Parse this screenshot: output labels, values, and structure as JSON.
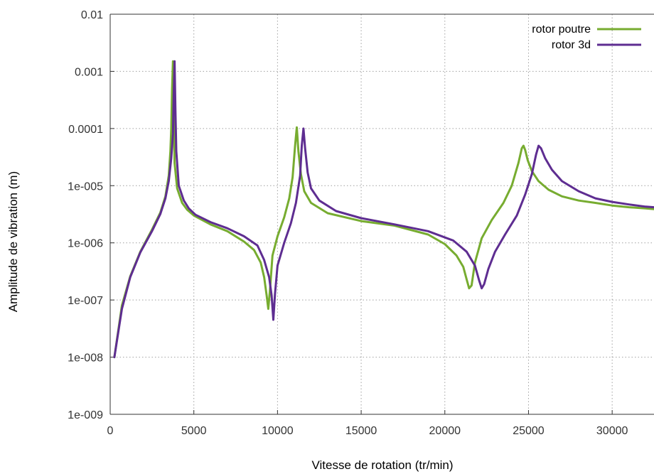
{
  "chart_data": {
    "type": "line",
    "title": "",
    "xlabel": "Vitesse de rotation (tr/min)",
    "ylabel": "Amplitude de vibration (m)",
    "xlim": [
      0,
      32500
    ],
    "ylim": [
      1e-09,
      0.01
    ],
    "yscale": "log",
    "grid": true,
    "legend_position": "top-right",
    "x_ticks": [
      0,
      5000,
      10000,
      15000,
      20000,
      25000,
      30000
    ],
    "x_tick_labels": [
      "0",
      "5000",
      "10000",
      "15000",
      "20000",
      "25000",
      "30000"
    ],
    "y_ticks": [
      1e-09,
      1e-08,
      1e-07,
      1e-06,
      1e-05,
      0.0001,
      0.001,
      0.01
    ],
    "y_tick_labels": [
      "1e-009",
      "1e-008",
      "1e-007",
      "1e-006",
      "1e-005",
      "0.0001",
      "0.001",
      "0.01"
    ],
    "series": [
      {
        "name": "rotor poutre",
        "color": "#77ac30",
        "x": [
          250,
          700,
          1200,
          1800,
          2500,
          3000,
          3300,
          3500,
          3600,
          3650,
          3700,
          3750,
          3800,
          3850,
          4000,
          4300,
          4600,
          5000,
          6000,
          7000,
          8000,
          8600,
          9000,
          9200,
          9350,
          9450,
          9550,
          9700,
          10000,
          10400,
          10700,
          10900,
          11050,
          11150,
          11250,
          11400,
          11600,
          12000,
          13000,
          15000,
          17000,
          19000,
          20000,
          20700,
          21100,
          21300,
          21450,
          21600,
          21800,
          22200,
          22800,
          23500,
          24000,
          24400,
          24600,
          24700,
          24800,
          24950,
          25200,
          25600,
          26200,
          27000,
          28000,
          29000,
          30000,
          31000,
          32000,
          32500
        ],
        "y": [
          1e-08,
          8e-08,
          2.6e-07,
          7e-07,
          1.7e-06,
          3.4e-06,
          6.5e-06,
          1.5e-05,
          4e-05,
          0.0001,
          0.0005,
          0.0015,
          0.0002,
          2.5e-05,
          9e-06,
          5e-06,
          3.8e-06,
          3e-06,
          2.1e-06,
          1.6e-06,
          1.05e-06,
          7.5e-07,
          4.5e-07,
          2.5e-07,
          1.2e-07,
          7e-08,
          1.5e-07,
          6e-07,
          1.3e-06,
          2.8e-06,
          6e-06,
          1.4e-05,
          5e-05,
          0.000105,
          4e-05,
          1.6e-05,
          8e-06,
          5e-06,
          3.3e-06,
          2.4e-06,
          2e-06,
          1.4e-06,
          9.5e-07,
          6e-07,
          3.8e-07,
          2.3e-07,
          1.6e-07,
          1.8e-07,
          4.5e-07,
          1.2e-06,
          2.5e-06,
          5e-06,
          1e-05,
          2.5e-05,
          4.5e-05,
          5e-05,
          4.2e-05,
          2.8e-05,
          1.8e-05,
          1.2e-05,
          8.5e-06,
          6.5e-06,
          5.5e-06,
          5e-06,
          4.5e-06,
          4.2e-06,
          4e-06,
          3.9e-06
        ]
      },
      {
        "name": "rotor 3d",
        "color": "#5e2d91",
        "x": [
          250,
          700,
          1200,
          1800,
          2500,
          3000,
          3300,
          3500,
          3650,
          3750,
          3800,
          3850,
          3900,
          3950,
          4100,
          4400,
          4700,
          5100,
          6000,
          7000,
          8000,
          8800,
          9200,
          9500,
          9650,
          9750,
          9850,
          10000,
          10400,
          10800,
          11100,
          11350,
          11450,
          11550,
          11650,
          11800,
          12000,
          12500,
          13500,
          15000,
          17000,
          19000,
          20500,
          21300,
          21800,
          22050,
          22200,
          22350,
          22600,
          23000,
          23600,
          24300,
          24800,
          25200,
          25450,
          25600,
          25750,
          26000,
          26400,
          27000,
          28000,
          29000,
          30000,
          31000,
          32000,
          32500
        ],
        "y": [
          1e-08,
          7e-08,
          2.5e-07,
          6.8e-07,
          1.6e-06,
          3.2e-06,
          6e-06,
          1.2e-05,
          3e-05,
          8e-05,
          0.0004,
          0.0015,
          0.0002,
          4e-05,
          1e-05,
          5.5e-06,
          4e-06,
          3.1e-06,
          2.3e-06,
          1.8e-06,
          1.3e-06,
          9e-07,
          5e-07,
          2.5e-07,
          1.2e-07,
          4.5e-08,
          1.3e-07,
          4e-07,
          1e-06,
          2.2e-06,
          5e-06,
          1.5e-05,
          5e-05,
          0.0001,
          4.5e-05,
          1.7e-05,
          9e-06,
          5.5e-06,
          3.6e-06,
          2.7e-06,
          2.1e-06,
          1.6e-06,
          1.1e-06,
          7e-07,
          4e-07,
          2.2e-07,
          1.6e-07,
          1.9e-07,
          3.5e-07,
          7e-07,
          1.4e-06,
          3e-06,
          7e-06,
          1.6e-05,
          3.5e-05,
          5e-05,
          4.5e-05,
          3e-05,
          1.9e-05,
          1.2e-05,
          8e-06,
          6e-06,
          5.2e-06,
          4.7e-06,
          4.3e-06,
          4.2e-06
        ]
      }
    ]
  }
}
